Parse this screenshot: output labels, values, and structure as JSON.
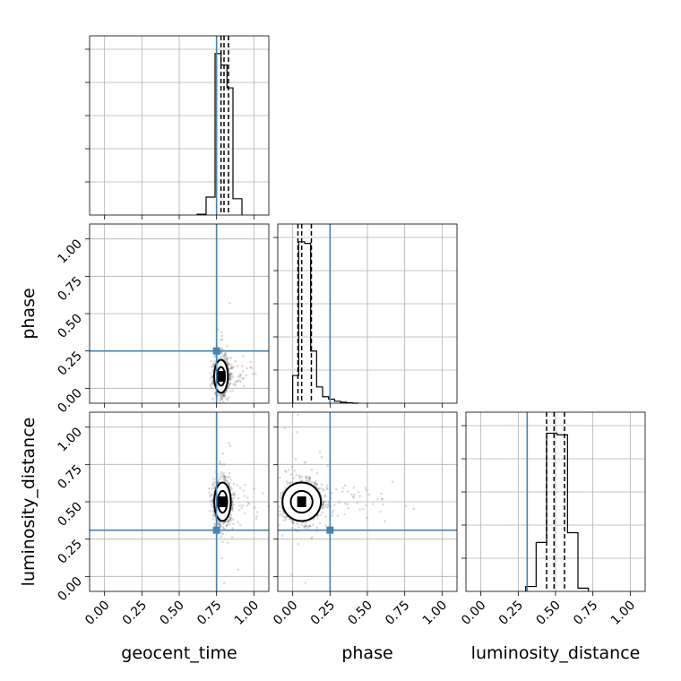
{
  "chart_data": {
    "type": "corner",
    "parameters": [
      "geocent_time",
      "phase",
      "luminosity_distance"
    ],
    "axis_labels": {
      "bottom": [
        "geocent_time",
        "phase",
        "luminosity_distance"
      ],
      "left": [
        "phase",
        "luminosity_distance"
      ]
    },
    "tick_values": [
      0.0,
      0.25,
      0.5,
      0.75,
      1.0
    ],
    "tick_labels": [
      "0.00",
      "0.25",
      "0.50",
      "0.75",
      "1.00"
    ],
    "range": [
      -0.1,
      1.1
    ],
    "grid": true,
    "truths": {
      "geocent_time": 0.75,
      "phase": 0.25,
      "luminosity_distance": 0.31
    },
    "colors": {
      "truth": "#4682b4",
      "histogram": "#000000",
      "grid": "#b0b0b0"
    },
    "histograms": [
      {
        "parameter": "geocent_time",
        "bin_edges": [
          0.62,
          0.68,
          0.74,
          0.78,
          0.82,
          0.86,
          0.92
        ],
        "counts": [
          0.005,
          0.11,
          0.99,
          0.92,
          0.78,
          0.1
        ],
        "quantiles": [
          0.78,
          0.8,
          0.83
        ]
      },
      {
        "parameter": "phase",
        "bin_edges": [
          -0.0,
          0.04,
          0.08,
          0.12,
          0.16,
          0.2,
          0.24,
          0.28,
          0.32,
          0.36,
          0.4,
          0.44
        ],
        "counts": [
          0.17,
          0.99,
          0.98,
          0.32,
          0.1,
          0.04,
          0.025,
          0.012,
          0.006,
          0.003,
          0.0
        ],
        "quantiles": [
          0.035,
          0.06,
          0.125
        ]
      },
      {
        "parameter": "luminosity_distance",
        "bin_edges": [
          0.3,
          0.37,
          0.44,
          0.51,
          0.58,
          0.65,
          0.72
        ],
        "counts": [
          0.03,
          0.3,
          0.97,
          0.96,
          0.36,
          0.02
        ],
        "quantiles": [
          0.44,
          0.49,
          0.56
        ]
      }
    ],
    "scatter_panels": [
      {
        "x": "geocent_time",
        "y": "phase",
        "center": [
          0.78,
          0.08
        ],
        "spread": [
          0.025,
          0.06
        ]
      },
      {
        "x": "geocent_time",
        "y": "luminosity_distance",
        "center": [
          0.79,
          0.5
        ],
        "spread": [
          0.03,
          0.07
        ]
      },
      {
        "x": "phase",
        "y": "luminosity_distance",
        "center": [
          0.06,
          0.5
        ],
        "spread": [
          0.07,
          0.07
        ]
      }
    ]
  }
}
